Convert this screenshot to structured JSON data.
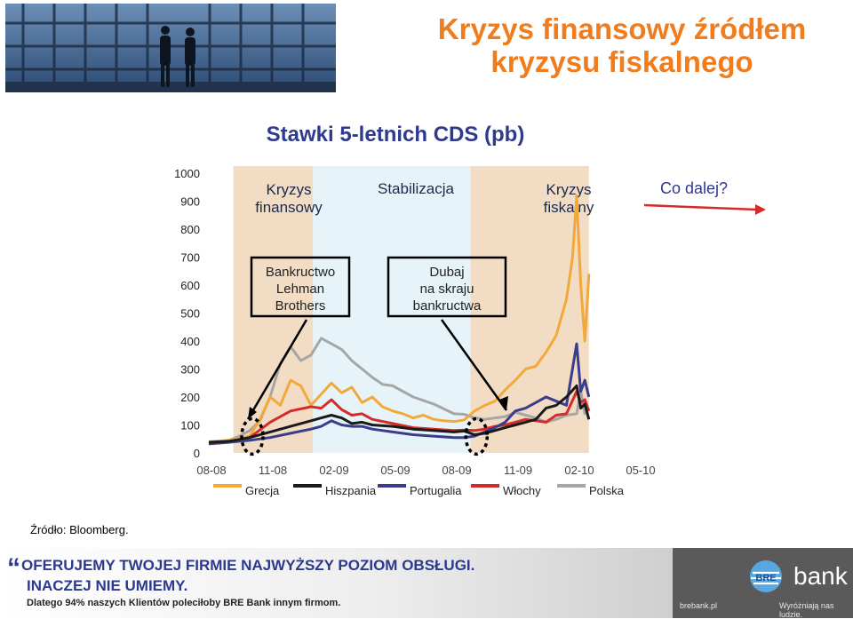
{
  "page": {
    "title": "Kryzys finansowy źródłem kryzysu fiskalnego",
    "source_note": "Źródło: Bloomberg."
  },
  "chart_data": {
    "type": "line",
    "title": "Stawki 5-letnich CDS (pb)",
    "ylim": [
      0,
      1000
    ],
    "yticks": [
      0,
      100,
      200,
      300,
      400,
      500,
      600,
      700,
      800,
      900,
      1000
    ],
    "x_tick_labels": [
      "08-08",
      "11-08",
      "02-09",
      "05-09",
      "08-09",
      "11-09",
      "02-10",
      "05-10"
    ],
    "x_range": [
      0,
      22
    ],
    "periods": [
      {
        "label": "Kryzys finansowy",
        "from": 1.2,
        "to": 5.1,
        "color": "#f2dcc4"
      },
      {
        "label": "Stabilizacja",
        "from": 5.1,
        "to": 12.8,
        "color": "#e6f4fa"
      },
      {
        "label": "Kryzys fiskalny",
        "from": 12.8,
        "to": 18.6,
        "color": "#f2dcc4"
      }
    ],
    "annotations": [
      {
        "label": "Bankructwo Lehman Brothers",
        "at": 2.0,
        "value": 75
      },
      {
        "label": "Dubaj na skraju bankructwa",
        "at": 13.1,
        "value": 75
      }
    ],
    "next_label": "Co dalej?",
    "series": [
      {
        "name": "Grecja",
        "color": "#f3a93a",
        "x": [
          0,
          1,
          2,
          2.5,
          3,
          3.5,
          4,
          4.5,
          5,
          5.5,
          6,
          6.5,
          7,
          7.5,
          8,
          8.5,
          9,
          9.5,
          10,
          10.5,
          11,
          11.5,
          12,
          12.5,
          13,
          13.5,
          14,
          14.5,
          15,
          15.5,
          16,
          16.5,
          17,
          17.5,
          17.8,
          18,
          18.2,
          18.4,
          18.6
        ],
        "y": [
          40,
          45,
          60,
          120,
          200,
          170,
          260,
          240,
          170,
          210,
          250,
          215,
          235,
          180,
          200,
          165,
          150,
          140,
          125,
          135,
          120,
          115,
          112,
          118,
          150,
          170,
          185,
          225,
          260,
          300,
          310,
          360,
          420,
          550,
          700,
          920,
          600,
          400,
          640
        ]
      },
      {
        "name": "Hiszpania",
        "color": "#1a1a1a",
        "x": [
          0,
          1,
          2,
          3,
          4,
          5,
          5.5,
          6,
          6.5,
          7,
          7.5,
          8,
          9,
          10,
          11,
          12,
          12.5,
          13,
          13.5,
          14,
          14.5,
          15,
          15.5,
          16,
          16.5,
          17,
          17.5,
          18,
          18.2,
          18.4,
          18.6
        ],
        "y": [
          38,
          42,
          55,
          75,
          95,
          115,
          125,
          135,
          125,
          105,
          110,
          100,
          95,
          85,
          80,
          75,
          78,
          65,
          70,
          80,
          90,
          100,
          110,
          120,
          160,
          170,
          200,
          240,
          160,
          175,
          120
        ]
      },
      {
        "name": "Portugalia",
        "color": "#3a3c8c",
        "x": [
          0,
          1,
          2,
          3,
          4,
          5,
          5.5,
          6,
          6.5,
          7,
          7.5,
          8,
          9,
          10,
          11,
          12,
          12.5,
          13,
          13.5,
          14,
          14.5,
          15,
          15.5,
          16,
          16.5,
          17,
          17.5,
          18,
          18.2,
          18.4,
          18.6
        ],
        "y": [
          33,
          38,
          45,
          55,
          70,
          85,
          95,
          115,
          100,
          95,
          95,
          85,
          75,
          65,
          60,
          55,
          55,
          60,
          75,
          90,
          110,
          150,
          160,
          180,
          200,
          185,
          170,
          390,
          220,
          260,
          200
        ]
      },
      {
        "name": "Włochy",
        "color": "#d62a2a",
        "x": [
          0,
          1,
          2,
          3,
          4,
          5,
          5.5,
          6,
          6.5,
          7,
          7.5,
          8,
          9,
          10,
          11,
          12,
          12.5,
          13,
          13.5,
          14,
          14.5,
          15,
          15.5,
          16,
          16.5,
          17,
          17.5,
          18,
          18.2,
          18.4,
          18.6
        ],
        "y": [
          32,
          38,
          55,
          110,
          150,
          165,
          160,
          190,
          155,
          135,
          140,
          120,
          105,
          90,
          85,
          80,
          82,
          80,
          85,
          95,
          100,
          110,
          120,
          115,
          110,
          135,
          140,
          220,
          180,
          190,
          150
        ]
      },
      {
        "name": "Polska",
        "color": "#a6a6a6",
        "x": [
          0,
          1,
          1.5,
          2,
          2.5,
          3,
          3.5,
          4,
          4.5,
          5,
          5.5,
          6,
          6.5,
          7,
          7.5,
          8,
          8.5,
          9,
          10,
          11,
          12,
          12.5,
          13,
          13.5,
          14,
          14.5,
          15,
          15.5,
          16,
          16.5,
          17,
          17.5,
          18,
          18.2,
          18.4,
          18.6
        ],
        "y": [
          38,
          45,
          60,
          80,
          115,
          200,
          320,
          380,
          330,
          350,
          410,
          390,
          370,
          330,
          300,
          270,
          245,
          240,
          200,
          175,
          140,
          138,
          125,
          120,
          125,
          130,
          145,
          135,
          125,
          110,
          120,
          135,
          140,
          220,
          140,
          160
        ]
      }
    ]
  }
}
